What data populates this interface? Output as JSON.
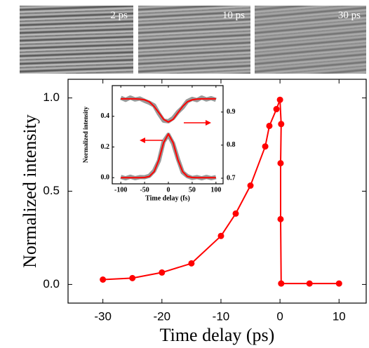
{
  "panels": [
    {
      "label": "2 ps"
    },
    {
      "label": "10 ps"
    },
    {
      "label": "30 ps"
    }
  ],
  "chart_data": [
    {
      "type": "line",
      "xlabel": "Time delay (ps)",
      "ylabel": "Normalized intensity",
      "xlim": [
        -35.9,
        14.6
      ],
      "ylim": [
        -0.1,
        1.1
      ],
      "xticks": [
        -30,
        -20,
        -10,
        0,
        10
      ],
      "yticks": [
        {
          "value": 0,
          "label": "0.0"
        },
        {
          "value": 0.5,
          "label": "0.5"
        },
        {
          "value": 1,
          "label": "1.0"
        }
      ],
      "x": [
        -30,
        -25,
        -20,
        -15,
        -10,
        -7.5,
        -5,
        -2.5,
        -1.8,
        -0.6,
        0,
        0.2,
        0.1,
        0.1,
        0.2,
        5,
        10
      ],
      "series": [
        {
          "color": "#ff0000",
          "linewidth": 2,
          "markers": true,
          "values": [
            0.026,
            0.034,
            0.064,
            0.113,
            0.26,
            0.38,
            0.53,
            0.74,
            0.85,
            0.94,
            0.99,
            0.86,
            0.65,
            0.35,
            0.005,
            0.005,
            0.005
          ]
        }
      ]
    },
    {
      "type": "line",
      "xlabel": "Time delay (fs)",
      "ylabel": "Normalized intensity",
      "xlim": [
        -118,
        115
      ],
      "ylim": [
        -0.04,
        0.6
      ],
      "y2lim": [
        0.683,
        0.98
      ],
      "xticks": [
        -100,
        -50,
        0,
        50,
        100
      ],
      "yticks": [
        {
          "value": 0,
          "label": "0.0"
        },
        {
          "value": 0.2,
          "label": "0.2"
        },
        {
          "value": 0.4,
          "label": "0.4"
        }
      ],
      "y2ticks": [
        0.7,
        0.8,
        0.9
      ],
      "x": [
        -100,
        -90,
        -80,
        -70,
        -60,
        -50,
        -40,
        -30,
        -20,
        -10,
        0,
        10,
        20,
        30,
        40,
        50,
        60,
        70,
        80,
        90,
        100
      ],
      "series": [
        {
          "color": "#999999",
          "linewidth": 6,
          "values": [
            0.005,
            -0.004,
            0.006,
            -0.003,
            0.004,
            0.003,
            0.012,
            0.045,
            0.11,
            0.235,
            0.28,
            0.222,
            0.122,
            0.035,
            0.01,
            -0.002,
            0.004,
            -0.004,
            0.005,
            -0.003,
            0.004
          ]
        },
        {
          "color": "#ff0000",
          "linewidth": 2,
          "values": [
            0,
            0,
            0,
            0,
            0,
            0.001,
            0.008,
            0.039,
            0.117,
            0.228,
            0.285,
            0.228,
            0.117,
            0.039,
            0.008,
            0.001,
            0,
            0,
            0,
            0,
            0
          ]
        },
        {
          "color": "#999999",
          "linewidth": 6,
          "axis": "y2",
          "values": [
            0.943,
            0.937,
            0.944,
            0.938,
            0.941,
            0.934,
            0.928,
            0.92,
            0.895,
            0.874,
            0.872,
            0.882,
            0.9,
            0.914,
            0.933,
            0.94,
            0.936,
            0.944,
            0.938,
            0.942,
            0.937
          ]
        },
        {
          "color": "#ff0000",
          "linewidth": 2,
          "axis": "y2",
          "values": [
            0.94,
            0.94,
            0.94,
            0.94,
            0.939,
            0.937,
            0.931,
            0.917,
            0.898,
            0.878,
            0.87,
            0.878,
            0.898,
            0.917,
            0.931,
            0.937,
            0.939,
            0.94,
            0.94,
            0.94,
            0.94
          ]
        }
      ]
    }
  ]
}
